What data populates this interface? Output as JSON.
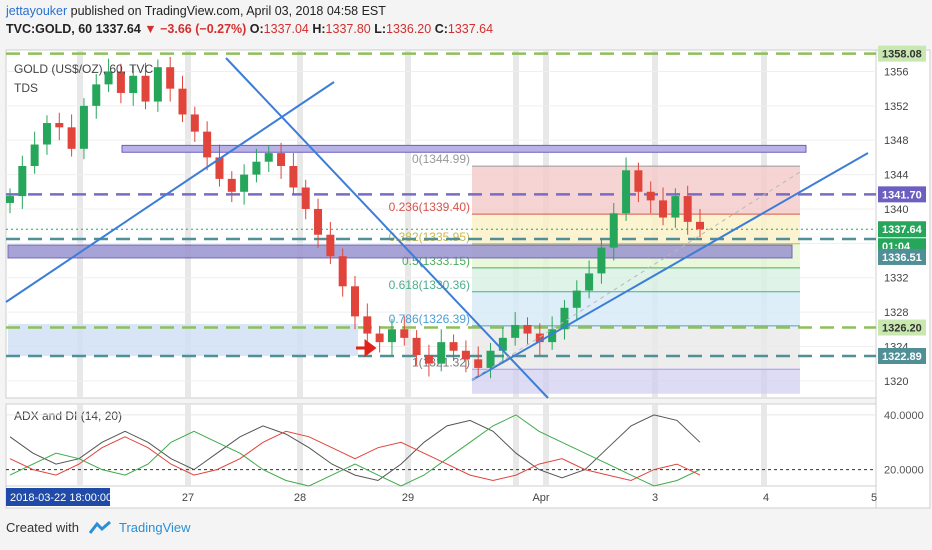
{
  "header": {
    "author": "jettayouker",
    "published_text": "published on TradingView.com, April 03, 2018 04:58 EST",
    "symbol": "TVC:GOLD, 60",
    "last": "1337.64",
    "change": "▼ −3.66 (−0.27%)",
    "o_label": "O:",
    "o": "1337.04",
    "h_label": "H:",
    "h": "1337.80",
    "l_label": "L:",
    "l": "1336.20",
    "c_label": "C:",
    "c": "1337.64"
  },
  "footer": {
    "created": "Created with",
    "brand": "TradingView"
  },
  "colors": {
    "up": "#26a65b",
    "down": "#e0443b",
    "trend": "#3b7dd8",
    "purple": "#7b6bc4",
    "teal": "#4f8f95",
    "green_dash": "#8fbf5a",
    "adx": "#555555",
    "di_plus": "#3daa4a",
    "di_minus": "#e0443b"
  },
  "chart_data": {
    "type": "candlestick",
    "title": "GOLD (US$/OZ), 60, TVC",
    "indicator": "TDS",
    "y_range": [
      1318,
      1358.5
    ],
    "y_ticks": [
      1320,
      1324,
      1328,
      1332,
      1336,
      1340,
      1344,
      1348,
      1352,
      1356
    ],
    "x_labels": [
      "27",
      "28",
      "29",
      "Apr",
      "3",
      "4",
      "5"
    ],
    "x_cursor_label": "2018-03-22 18:00:00",
    "price_labels": [
      {
        "value": "1358.08",
        "kind": "green"
      },
      {
        "value": "1341.70",
        "kind": "purple"
      },
      {
        "value": "1337.64",
        "kind": "current"
      },
      {
        "value": "01:04",
        "kind": "timer"
      },
      {
        "value": "1336.51",
        "kind": "teal"
      },
      {
        "value": "1326.20",
        "kind": "green"
      },
      {
        "value": "1322.89",
        "kind": "teal"
      }
    ],
    "fib_levels": [
      {
        "ratio": "0",
        "price": 1344.99,
        "label": "0(1344.99)"
      },
      {
        "ratio": "0.236",
        "price": 1339.4,
        "label": "0.236(1339.40)"
      },
      {
        "ratio": "0.382",
        "price": 1335.95,
        "label": "0.382(1335.95)"
      },
      {
        "ratio": "0.5",
        "price": 1333.15,
        "label": "0.5(1333.15)"
      },
      {
        "ratio": "0.618",
        "price": 1330.36,
        "label": "0.618(1330.36)"
      },
      {
        "ratio": "0.786",
        "price": 1326.39,
        "label": "0.786(1326.39)"
      },
      {
        "ratio": "1",
        "price": 1321.32,
        "label": "1(1321.32)"
      }
    ],
    "close_series": [
      1341.5,
      1345.0,
      1347.5,
      1350.0,
      1349.5,
      1347.0,
      1352.0,
      1354.5,
      1356.0,
      1353.5,
      1355.5,
      1352.5,
      1356.5,
      1354.0,
      1351.0,
      1349.0,
      1346.0,
      1343.5,
      1342.0,
      1344.0,
      1345.5,
      1346.5,
      1345.0,
      1342.5,
      1340.0,
      1337.0,
      1334.5,
      1331.0,
      1327.5,
      1325.5,
      1324.5,
      1326.0,
      1325.0,
      1323.0,
      1322.0,
      1324.5,
      1323.5,
      1322.5,
      1321.5,
      1323.5,
      1325.0,
      1326.5,
      1325.5,
      1324.5,
      1326.0,
      1328.5,
      1330.5,
      1332.5,
      1335.5,
      1339.5,
      1344.5,
      1342.0,
      1341.0,
      1339.0,
      1341.5,
      1338.5,
      1337.64
    ],
    "adx_panel": {
      "label": "ADX and DI (14, 20)",
      "y_ticks": [
        "40.0000",
        "20.0000"
      ],
      "adx": [
        32,
        26,
        22,
        24,
        30,
        34,
        30,
        24,
        20,
        26,
        32,
        36,
        33,
        28,
        22,
        18,
        16,
        22,
        30,
        36,
        38,
        34,
        26,
        20,
        17,
        20,
        28,
        36,
        40,
        38,
        30
      ],
      "di_plus": [
        18,
        22,
        26,
        24,
        20,
        18,
        22,
        30,
        34,
        30,
        26,
        20,
        16,
        14,
        18,
        22,
        18,
        14,
        18,
        24,
        30,
        36,
        40,
        34,
        30,
        26,
        22,
        18,
        14,
        16,
        20
      ],
      "di_minus": [
        24,
        20,
        18,
        22,
        28,
        32,
        28,
        22,
        18,
        20,
        24,
        30,
        34,
        32,
        28,
        24,
        28,
        30,
        26,
        22,
        18,
        16,
        18,
        22,
        24,
        20,
        18,
        16,
        20,
        22,
        18
      ]
    }
  }
}
